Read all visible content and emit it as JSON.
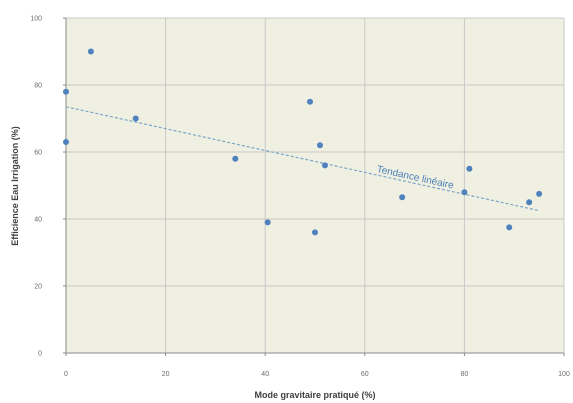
{
  "chart_data": {
    "type": "scatter",
    "xlabel": "Mode gravitaire pratiqué (%)",
    "ylabel": "Efficience Eau Irrigation (%)",
    "xlim": [
      0,
      100
    ],
    "ylim": [
      0,
      100
    ],
    "xticks": [
      0,
      20,
      40,
      60,
      80,
      100
    ],
    "yticks": [
      0,
      20,
      40,
      60,
      80,
      100
    ],
    "grid": true,
    "legend": "none",
    "background_color": "#f0f0e2",
    "grid_color": "#c8c8c8",
    "point_color": "#4f81bd",
    "trend_color": "#7aa6c8",
    "series": [
      {
        "points": [
          {
            "x": 0,
            "y": 78
          },
          {
            "x": 0,
            "y": 63
          },
          {
            "x": 5,
            "y": 90
          },
          {
            "x": 14,
            "y": 70
          },
          {
            "x": 34,
            "y": 58
          },
          {
            "x": 40.5,
            "y": 39
          },
          {
            "x": 49,
            "y": 75
          },
          {
            "x": 50,
            "y": 36
          },
          {
            "x": 51,
            "y": 62
          },
          {
            "x": 52,
            "y": 56
          },
          {
            "x": 67.5,
            "y": 46.5
          },
          {
            "x": 80,
            "y": 48
          },
          {
            "x": 81,
            "y": 55
          },
          {
            "x": 89,
            "y": 37.5
          },
          {
            "x": 93,
            "y": 45
          },
          {
            "x": 95,
            "y": 47.5
          }
        ]
      }
    ],
    "trendline": {
      "label": "Tendance linéaire",
      "type": "linear",
      "x": [
        0,
        95
      ],
      "y": [
        73.5,
        42.5
      ]
    }
  }
}
